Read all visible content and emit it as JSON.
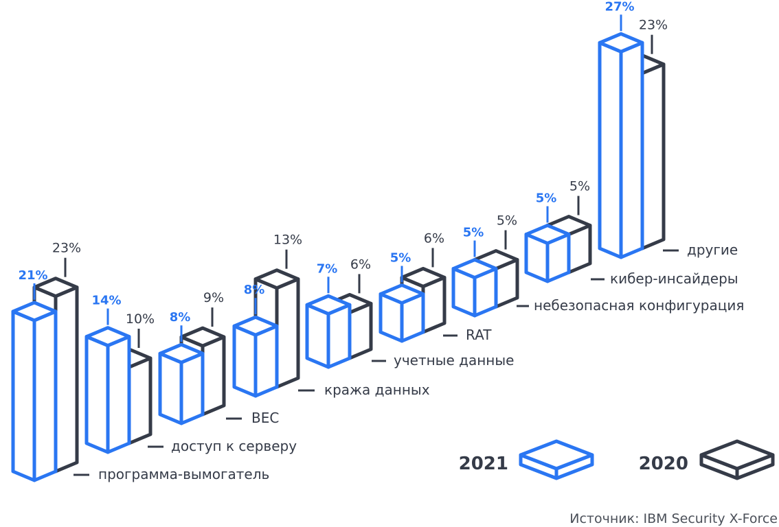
{
  "colors": {
    "series_2021": "#2a76f2",
    "series_2020": "#353b48"
  },
  "source": "Источник: IBM Security X-Force",
  "chart_data": {
    "type": "bar",
    "style": "3d-isometric",
    "categories": [
      "программа-вымогатель",
      "доступ к серверу",
      "BEC",
      "кража данных",
      "учетные данные",
      "RAT",
      "небезопасная конфигурация",
      "кибер-инсайдеры",
      "другие"
    ],
    "series": [
      {
        "name": "2021",
        "values": [
          21,
          14,
          8,
          8,
          7,
          5,
          5,
          5,
          27
        ]
      },
      {
        "name": "2020",
        "values": [
          23,
          10,
          9,
          13,
          6,
          6,
          5,
          5,
          23
        ]
      }
    ],
    "value_labels": {
      "2021": [
        "21%",
        "14%",
        "8%",
        "8%",
        "7%",
        "5%",
        "5%",
        "5%",
        "27%"
      ],
      "2020": [
        "23%",
        "10%",
        "9%",
        "13%",
        "6%",
        "6%",
        "5%",
        "5%",
        "23%"
      ]
    },
    "legend": [
      {
        "label": "2021",
        "color": "#2a76f2"
      },
      {
        "label": "2020",
        "color": "#353b48"
      }
    ],
    "legend_position": "bottom-right",
    "grid": false,
    "ylabel": ""
  }
}
